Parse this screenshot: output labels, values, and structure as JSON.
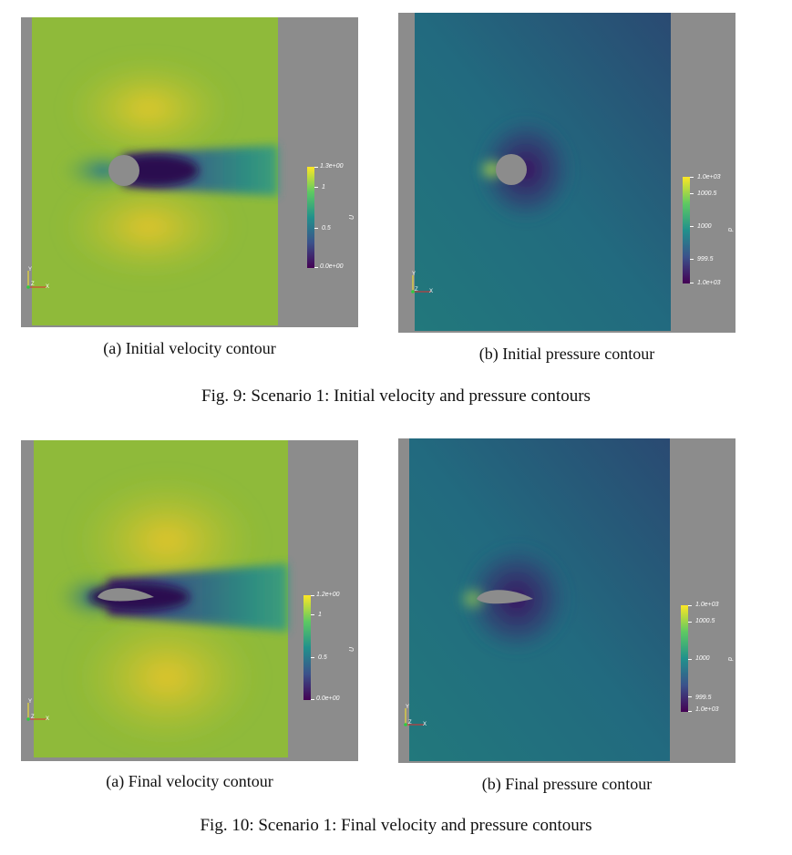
{
  "figure_9": {
    "caption": "Fig. 9: Scenario 1: Initial velocity and pressure contours",
    "panel_a": {
      "caption": "(a) Initial velocity contour",
      "variable": "U",
      "colorbar_labels": [
        "1.3e+00",
        "1",
        "0.5",
        "0.0e+00"
      ]
    },
    "panel_b": {
      "caption": "(b) Initial pressure contour",
      "variable": "p",
      "colorbar_labels": [
        "1.0e+03",
        "1000.5",
        "1000",
        "999.5",
        "1.0e+03"
      ]
    }
  },
  "figure_10": {
    "caption": "Fig. 10: Scenario 1: Final velocity and pressure contours",
    "panel_a": {
      "caption": "(a) Final velocity contour",
      "variable": "U",
      "colorbar_labels": [
        "1.2e+00",
        "1",
        "0.5",
        "0.0e+00"
      ]
    },
    "panel_b": {
      "caption": "(b) Final pressure contour",
      "variable": "p",
      "colorbar_labels": [
        "1.0e+03",
        "1000.5",
        "1000",
        "999.5",
        "1.0e+03"
      ]
    }
  },
  "axes_triad": {
    "y": "Y",
    "z": "Z",
    "x": "X"
  },
  "colors": {
    "background_gray": "#8c8c8c",
    "viridis_low": "#440154",
    "viridis_mid": "#21918c",
    "viridis_high": "#fde725"
  }
}
